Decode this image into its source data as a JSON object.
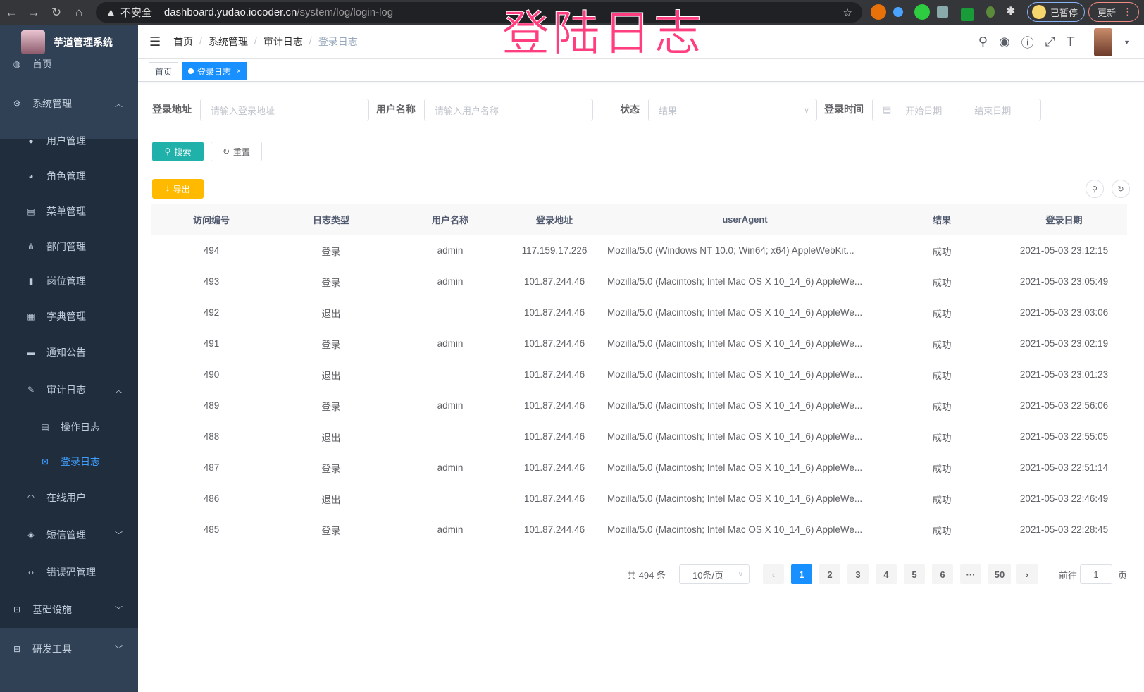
{
  "browser": {
    "security": "不安全",
    "host": "dashboard.yudao.iocoder.cn",
    "path": "/system/log/login-log",
    "paused": "已暂停",
    "update": "更新"
  },
  "app": {
    "title": "芋道管理系统"
  },
  "watermark": "登陆日志",
  "sidebar": {
    "items": [
      {
        "label": "首页",
        "icon": "dashboard-icon",
        "level": 0
      },
      {
        "label": "系统管理",
        "icon": "gear-icon",
        "level": 0,
        "arrow": "up"
      },
      {
        "label": "用户管理",
        "icon": "user-icon",
        "level": 1
      },
      {
        "label": "角色管理",
        "icon": "role-icon",
        "level": 1
      },
      {
        "label": "菜单管理",
        "icon": "menu-icon",
        "level": 1
      },
      {
        "label": "部门管理",
        "icon": "tree-icon",
        "level": 1
      },
      {
        "label": "岗位管理",
        "icon": "post-icon",
        "level": 1
      },
      {
        "label": "字典管理",
        "icon": "dict-icon",
        "level": 1
      },
      {
        "label": "通知公告",
        "icon": "message-icon",
        "level": 1
      },
      {
        "label": "审计日志",
        "icon": "edit-icon",
        "level": 1,
        "arrow": "up"
      },
      {
        "label": "操作日志",
        "icon": "form-icon",
        "level": 2
      },
      {
        "label": "登录日志",
        "icon": "logininfor-icon",
        "level": 2,
        "active": true
      },
      {
        "label": "在线用户",
        "icon": "online-icon",
        "level": 1
      },
      {
        "label": "短信管理",
        "icon": "shield-icon",
        "level": 1,
        "arrow": "down"
      },
      {
        "label": "错误码管理",
        "icon": "code-icon",
        "level": 1
      },
      {
        "label": "基础设施",
        "icon": "monitor-icon",
        "level": 0,
        "arrow": "down"
      },
      {
        "label": "研发工具",
        "icon": "tool-icon",
        "level": 0,
        "arrow": "down"
      }
    ]
  },
  "breadcrumb": [
    "首页",
    "系统管理",
    "审计日志",
    "登录日志"
  ],
  "tags": [
    {
      "label": "首页"
    },
    {
      "label": "登录日志",
      "active": true
    }
  ],
  "filters": {
    "ip_label": "登录地址",
    "ip_placeholder": "请输入登录地址",
    "user_label": "用户名称",
    "user_placeholder": "请输入用户名称",
    "status_label": "状态",
    "status_placeholder": "结果",
    "time_label": "登录时间",
    "start_placeholder": "开始日期",
    "range_sep": "-",
    "end_placeholder": "结束日期"
  },
  "buttons": {
    "search": "搜索",
    "reset": "重置",
    "export": "导出"
  },
  "colors": {
    "primary": "#1890ff",
    "search": "#20b2aa",
    "export": "#ffba00",
    "sidebar": "#304156"
  },
  "table": {
    "columns": [
      "访问编号",
      "日志类型",
      "用户名称",
      "登录地址",
      "userAgent",
      "结果",
      "登录日期"
    ],
    "rows": [
      [
        "494",
        "登录",
        "admin",
        "117.159.17.226",
        "Mozilla/5.0 (Windows NT 10.0; Win64; x64) AppleWebKit...",
        "成功",
        "2021-05-03 23:12:15"
      ],
      [
        "493",
        "登录",
        "admin",
        "101.87.244.46",
        "Mozilla/5.0 (Macintosh; Intel Mac OS X 10_14_6) AppleWe...",
        "成功",
        "2021-05-03 23:05:49"
      ],
      [
        "492",
        "退出",
        "",
        "101.87.244.46",
        "Mozilla/5.0 (Macintosh; Intel Mac OS X 10_14_6) AppleWe...",
        "成功",
        "2021-05-03 23:03:06"
      ],
      [
        "491",
        "登录",
        "admin",
        "101.87.244.46",
        "Mozilla/5.0 (Macintosh; Intel Mac OS X 10_14_6) AppleWe...",
        "成功",
        "2021-05-03 23:02:19"
      ],
      [
        "490",
        "退出",
        "",
        "101.87.244.46",
        "Mozilla/5.0 (Macintosh; Intel Mac OS X 10_14_6) AppleWe...",
        "成功",
        "2021-05-03 23:01:23"
      ],
      [
        "489",
        "登录",
        "admin",
        "101.87.244.46",
        "Mozilla/5.0 (Macintosh; Intel Mac OS X 10_14_6) AppleWe...",
        "成功",
        "2021-05-03 22:56:06"
      ],
      [
        "488",
        "退出",
        "",
        "101.87.244.46",
        "Mozilla/5.0 (Macintosh; Intel Mac OS X 10_14_6) AppleWe...",
        "成功",
        "2021-05-03 22:55:05"
      ],
      [
        "487",
        "登录",
        "admin",
        "101.87.244.46",
        "Mozilla/5.0 (Macintosh; Intel Mac OS X 10_14_6) AppleWe...",
        "成功",
        "2021-05-03 22:51:14"
      ],
      [
        "486",
        "退出",
        "",
        "101.87.244.46",
        "Mozilla/5.0 (Macintosh; Intel Mac OS X 10_14_6) AppleWe...",
        "成功",
        "2021-05-03 22:46:49"
      ],
      [
        "485",
        "登录",
        "admin",
        "101.87.244.46",
        "Mozilla/5.0 (Macintosh; Intel Mac OS X 10_14_6) AppleWe...",
        "成功",
        "2021-05-03 22:28:45"
      ]
    ]
  },
  "pagination": {
    "total": "共 494 条",
    "page_size": "10条/页",
    "pages": [
      "1",
      "2",
      "3",
      "4",
      "5",
      "6",
      "···",
      "50"
    ],
    "current": "1",
    "goto_label": "前往",
    "goto_value": "1",
    "goto_suffix": "页"
  }
}
